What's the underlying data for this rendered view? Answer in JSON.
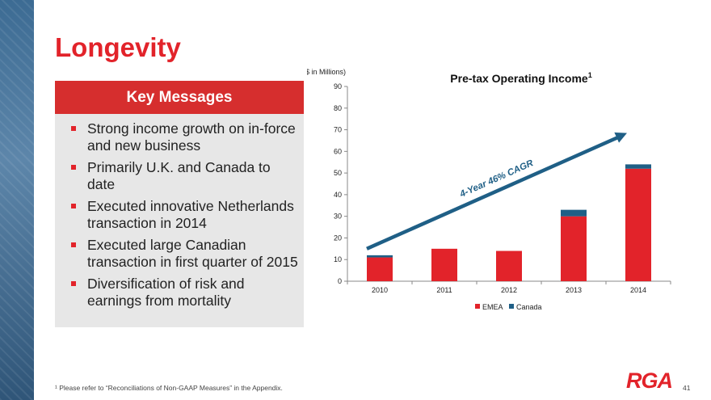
{
  "slide": {
    "title": "Longevity",
    "footnote": "¹ Please refer to “Reconciliations of Non-GAAP Measures” in the Appendix.",
    "page_number": "41",
    "logo_text": "RGA"
  },
  "key_messages": {
    "header": "Key Messages",
    "items": [
      "Strong income growth on in-force and new business",
      "Primarily U.K. and Canada to date",
      "Executed innovative Netherlands transaction in 2014",
      "Executed large Canadian transaction in first quarter of 2015",
      "Diversification of risk and earnings from mortality"
    ]
  },
  "chart_data": {
    "type": "bar",
    "stacked": true,
    "title": "Pre-tax Operating Income",
    "title_superscript": "1",
    "units_label": "($ in Millions)",
    "categories": [
      "2010",
      "2011",
      "2012",
      "2013",
      "2014"
    ],
    "series": [
      {
        "name": "EMEA",
        "color": "#e2232a",
        "values": [
          11,
          15,
          14,
          30,
          52
        ]
      },
      {
        "name": "Canada",
        "color": "#1f5f86",
        "values": [
          1,
          0,
          0,
          3,
          2
        ]
      }
    ],
    "ylim": [
      0,
      90
    ],
    "yticks": [
      0,
      10,
      20,
      30,
      40,
      50,
      60,
      70,
      80,
      90
    ],
    "annotation": "4-Year 46% CAGR",
    "legend": "bottom-center"
  }
}
